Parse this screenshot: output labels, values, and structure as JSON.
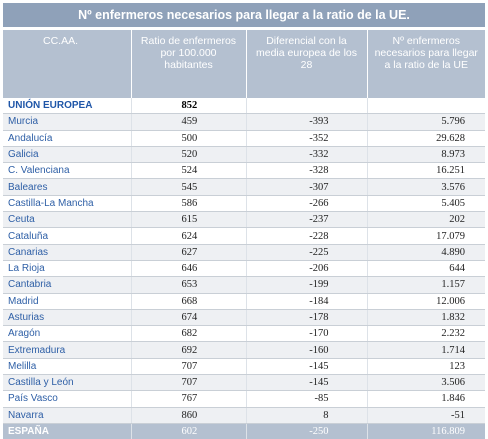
{
  "title": "Nº enfermeros necesarios para llegar a la ratio de la UE.",
  "headers": {
    "c1": "CC.AA.",
    "c2": "Ratio de enfermeros por 100.000 habitantes",
    "c3": "Diferencial con la media europea de los 28",
    "c4": "Nº enfermeros necesarios para llegar a la ratio de la UE"
  },
  "eu_row": {
    "name": "UNIÓN EUROPEA",
    "ratio": "852",
    "diff": "",
    "needed": ""
  },
  "rows": [
    {
      "name": "Murcia",
      "ratio": "459",
      "diff": "-393",
      "needed": "5.796"
    },
    {
      "name": "Andalucía",
      "ratio": "500",
      "diff": "-352",
      "needed": "29.628"
    },
    {
      "name": "Galicia",
      "ratio": "520",
      "diff": "-332",
      "needed": "8.973"
    },
    {
      "name": "C. Valenciana",
      "ratio": "524",
      "diff": "-328",
      "needed": "16.251"
    },
    {
      "name": "Baleares",
      "ratio": "545",
      "diff": "-307",
      "needed": "3.576"
    },
    {
      "name": "Castilla-La Mancha",
      "ratio": "586",
      "diff": "-266",
      "needed": "5.405"
    },
    {
      "name": "Ceuta",
      "ratio": "615",
      "diff": "-237",
      "needed": "202"
    },
    {
      "name": "Cataluña",
      "ratio": "624",
      "diff": "-228",
      "needed": "17.079"
    },
    {
      "name": "Canarias",
      "ratio": "627",
      "diff": "-225",
      "needed": "4.890"
    },
    {
      "name": "La Rioja",
      "ratio": "646",
      "diff": "-206",
      "needed": "644"
    },
    {
      "name": "Cantabria",
      "ratio": "653",
      "diff": "-199",
      "needed": "1.157"
    },
    {
      "name": "Madrid",
      "ratio": "668",
      "diff": "-184",
      "needed": "12.006"
    },
    {
      "name": "Asturias",
      "ratio": "674",
      "diff": "-178",
      "needed": "1.832"
    },
    {
      "name": "Aragón",
      "ratio": "682",
      "diff": "-170",
      "needed": "2.232"
    },
    {
      "name": "Extremadura",
      "ratio": "692",
      "diff": "-160",
      "needed": "1.714"
    },
    {
      "name": "Melilla",
      "ratio": "707",
      "diff": "-145",
      "needed": "123"
    },
    {
      "name": "Castilla y León",
      "ratio": "707",
      "diff": "-145",
      "needed": "3.506"
    },
    {
      "name": "País Vasco",
      "ratio": "767",
      "diff": "-85",
      "needed": "1.846"
    },
    {
      "name": "Navarra",
      "ratio": "860",
      "diff": "8",
      "needed": "-51"
    }
  ],
  "total_row": {
    "name": "ESPAÑA",
    "ratio": "602",
    "diff": "-250",
    "needed": "116.809"
  },
  "colors": {
    "title_bg": "#8fa1b9",
    "header_bg": "#b4c0d0",
    "region_text": "#2e5fa6",
    "stripe": "#eef0f3"
  }
}
